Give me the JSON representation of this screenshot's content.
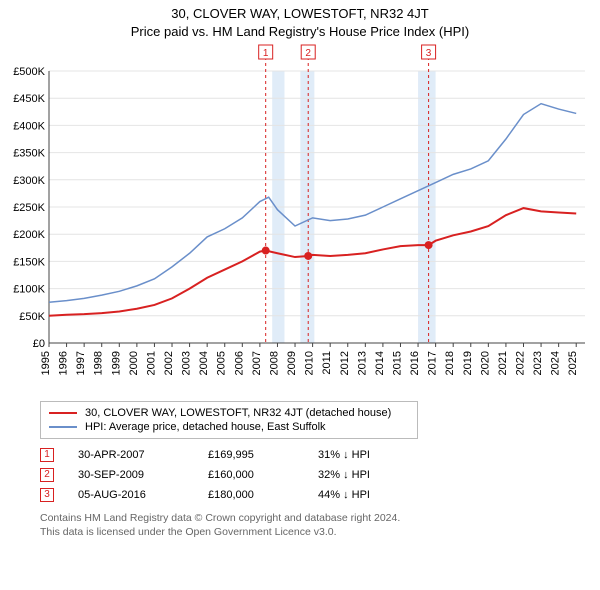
{
  "title_line1": "30, CLOVER WAY, LOWESTOFT, NR32 4JT",
  "title_line2": "Price paid vs. HM Land Registry's House Price Index (HPI)",
  "chart": {
    "type": "line",
    "background_color": "#ffffff",
    "grid_color": "#e4e4e4",
    "axis_color": "#444444",
    "x_years": [
      1995,
      1996,
      1997,
      1998,
      1999,
      2000,
      2001,
      2002,
      2003,
      2004,
      2005,
      2006,
      2007,
      2008,
      2009,
      2010,
      2011,
      2012,
      2013,
      2014,
      2015,
      2016,
      2017,
      2018,
      2019,
      2020,
      2021,
      2022,
      2023,
      2024,
      2025
    ],
    "x_domain": [
      1995,
      2025.5
    ],
    "ylim": [
      0,
      500000
    ],
    "ytick_step": 50000,
    "ylabel_prefix": "£",
    "ylabel_suffix": "K",
    "vertical_bands": [
      {
        "from": 2007.7,
        "to": 2008.4,
        "color": "#e0ecf8"
      },
      {
        "from": 2009.3,
        "to": 2010.1,
        "color": "#e0ecf8"
      },
      {
        "from": 2016.0,
        "to": 2017.0,
        "color": "#e0ecf8"
      }
    ],
    "sale_lines": [
      {
        "x": 2007.33,
        "label": "1"
      },
      {
        "x": 2009.75,
        "label": "2"
      },
      {
        "x": 2016.6,
        "label": "3"
      }
    ],
    "series": [
      {
        "name": "property",
        "color": "#d82121",
        "width": 2,
        "points": [
          [
            1995,
            50000
          ],
          [
            1996,
            52000
          ],
          [
            1997,
            53000
          ],
          [
            1998,
            55000
          ],
          [
            1999,
            58000
          ],
          [
            2000,
            63000
          ],
          [
            2001,
            70000
          ],
          [
            2002,
            82000
          ],
          [
            2003,
            100000
          ],
          [
            2004,
            120000
          ],
          [
            2005,
            135000
          ],
          [
            2006,
            150000
          ],
          [
            2007,
            168000
          ],
          [
            2007.33,
            169995
          ],
          [
            2008,
            165000
          ],
          [
            2009,
            158000
          ],
          [
            2009.75,
            160000
          ],
          [
            2010,
            162000
          ],
          [
            2011,
            160000
          ],
          [
            2012,
            162000
          ],
          [
            2013,
            165000
          ],
          [
            2014,
            172000
          ],
          [
            2015,
            178000
          ],
          [
            2016,
            180000
          ],
          [
            2016.6,
            180000
          ],
          [
            2017,
            188000
          ],
          [
            2018,
            198000
          ],
          [
            2019,
            205000
          ],
          [
            2020,
            215000
          ],
          [
            2021,
            235000
          ],
          [
            2022,
            248000
          ],
          [
            2023,
            242000
          ],
          [
            2024,
            240000
          ],
          [
            2025,
            238000
          ]
        ],
        "markers": [
          {
            "x": 2007.33,
            "y": 169995
          },
          {
            "x": 2009.75,
            "y": 160000
          },
          {
            "x": 2016.6,
            "y": 180000
          }
        ]
      },
      {
        "name": "hpi",
        "color": "#6a8fca",
        "width": 1.5,
        "points": [
          [
            1995,
            75000
          ],
          [
            1996,
            78000
          ],
          [
            1997,
            82000
          ],
          [
            1998,
            88000
          ],
          [
            1999,
            95000
          ],
          [
            2000,
            105000
          ],
          [
            2001,
            118000
          ],
          [
            2002,
            140000
          ],
          [
            2003,
            165000
          ],
          [
            2004,
            195000
          ],
          [
            2005,
            210000
          ],
          [
            2006,
            230000
          ],
          [
            2007,
            260000
          ],
          [
            2007.5,
            268000
          ],
          [
            2008,
            245000
          ],
          [
            2009,
            215000
          ],
          [
            2010,
            230000
          ],
          [
            2011,
            225000
          ],
          [
            2012,
            228000
          ],
          [
            2013,
            235000
          ],
          [
            2014,
            250000
          ],
          [
            2015,
            265000
          ],
          [
            2016,
            280000
          ],
          [
            2017,
            295000
          ],
          [
            2018,
            310000
          ],
          [
            2019,
            320000
          ],
          [
            2020,
            335000
          ],
          [
            2021,
            375000
          ],
          [
            2022,
            420000
          ],
          [
            2023,
            440000
          ],
          [
            2024,
            430000
          ],
          [
            2025,
            422000
          ]
        ]
      }
    ],
    "sale_line_color": "#d82121",
    "sale_line_dash": "3,3",
    "marker_label_box_border": "#d82121",
    "marker_label_box_text": "#d82121"
  },
  "legend": {
    "items": [
      {
        "color": "#d82121",
        "text": "30, CLOVER WAY, LOWESTOFT, NR32 4JT (detached house)"
      },
      {
        "color": "#6a8fca",
        "text": "HPI: Average price, detached house, East Suffolk"
      }
    ]
  },
  "sales": [
    {
      "n": "1",
      "date": "30-APR-2007",
      "price": "£169,995",
      "delta": "31% ↓ HPI"
    },
    {
      "n": "2",
      "date": "30-SEP-2009",
      "price": "£160,000",
      "delta": "32% ↓ HPI"
    },
    {
      "n": "3",
      "date": "05-AUG-2016",
      "price": "£180,000",
      "delta": "44% ↓ HPI"
    }
  ],
  "footer": {
    "line1": "Contains HM Land Registry data © Crown copyright and database right 2024.",
    "line2": "This data is licensed under the Open Government Licence v3.0."
  }
}
